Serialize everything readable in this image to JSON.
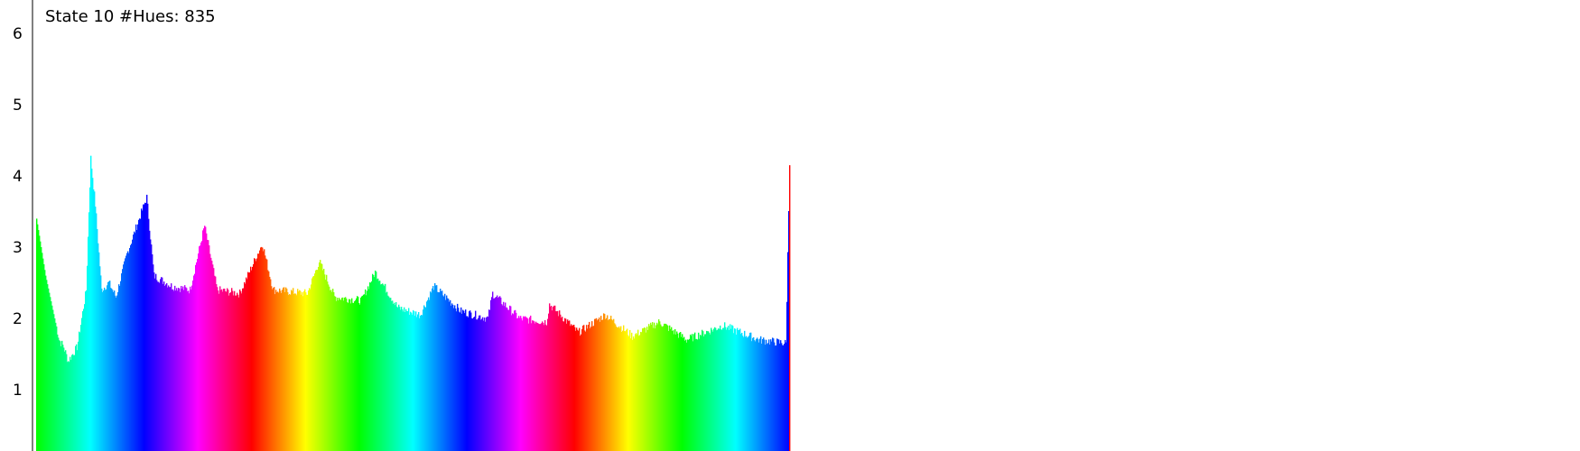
{
  "chart_data": {
    "type": "bar",
    "title": "State 10 #Hues: 835",
    "xlabel": "",
    "ylabel": "",
    "ylim": [
      0.2,
      6.3
    ],
    "y_ticks": [
      "1",
      "2",
      "3",
      "4",
      "5",
      "6"
    ],
    "grid": false,
    "bar_count": 835,
    "color_encoding": "hue cycles through the spectrum repeatedly across the x range, starting at green",
    "series": [
      {
        "values_approx_profile": [
          [
            0,
            3.4
          ],
          [
            10,
            2.6
          ],
          [
            25,
            1.7
          ],
          [
            30,
            1.6
          ],
          [
            35,
            1.4
          ],
          [
            45,
            1.6
          ],
          [
            55,
            2.4
          ],
          [
            60,
            4.25
          ],
          [
            65,
            3.6
          ],
          [
            72,
            2.4
          ],
          [
            80,
            2.5
          ],
          [
            88,
            2.3
          ],
          [
            100,
            2.9
          ],
          [
            122,
            3.7
          ],
          [
            130,
            2.6
          ],
          [
            150,
            2.45
          ],
          [
            170,
            2.4
          ],
          [
            186,
            3.3
          ],
          [
            200,
            2.4
          ],
          [
            225,
            2.35
          ],
          [
            250,
            3.05
          ],
          [
            262,
            2.4
          ],
          [
            300,
            2.35
          ],
          [
            313,
            2.8
          ],
          [
            330,
            2.3
          ],
          [
            360,
            2.25
          ],
          [
            375,
            2.65
          ],
          [
            400,
            2.15
          ],
          [
            425,
            2.05
          ],
          [
            440,
            2.45
          ],
          [
            470,
            2.1
          ],
          [
            500,
            2.0
          ],
          [
            505,
            2.35
          ],
          [
            535,
            2.0
          ],
          [
            565,
            1.95
          ],
          [
            568,
            2.2
          ],
          [
            600,
            1.8
          ],
          [
            630,
            2.05
          ],
          [
            660,
            1.75
          ],
          [
            690,
            1.95
          ],
          [
            720,
            1.7
          ],
          [
            760,
            1.9
          ],
          [
            800,
            1.7
          ],
          [
            830,
            1.65
          ],
          [
            834,
            4.15
          ]
        ]
      }
    ],
    "colors": {
      "axis": "#000000",
      "background": "#ffffff",
      "hue_start": "#00ff00"
    }
  }
}
